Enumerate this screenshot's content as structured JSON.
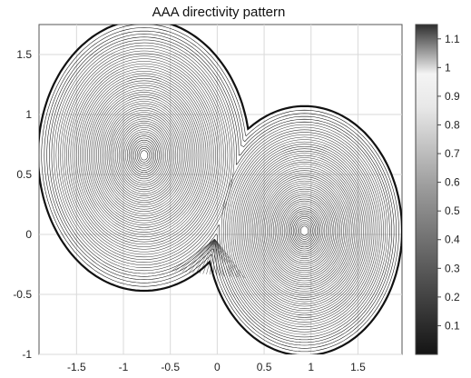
{
  "chart_data": {
    "type": "contour",
    "title": "AAA directivity pattern",
    "xlabel": "",
    "ylabel": "",
    "xlim": [
      -1.9,
      1.97
    ],
    "ylim": [
      -1.0,
      1.75
    ],
    "x_ticks": [
      "-1.5",
      "-1",
      "-0.5",
      "0",
      "0.5",
      "1",
      "1.5"
    ],
    "y_ticks": [
      "1.5",
      "1",
      "0.5",
      "0",
      "-0.5",
      "-1"
    ],
    "grid": true,
    "colormap": "gray",
    "colorbar": {
      "range": [
        0.0,
        1.15
      ],
      "ticks": [
        "1.1",
        "1",
        "0.9",
        "0.8",
        "0.7",
        "0.6",
        "0.5",
        "0.4",
        "0.3",
        "0.2",
        "0.1"
      ]
    },
    "lobes": [
      {
        "center": [
          -0.78,
          0.66
        ],
        "radius": 1.09
      },
      {
        "center": [
          0.93,
          0.03
        ],
        "radius": 1.0
      }
    ],
    "null_point": [
      0.0,
      0.0
    ]
  }
}
